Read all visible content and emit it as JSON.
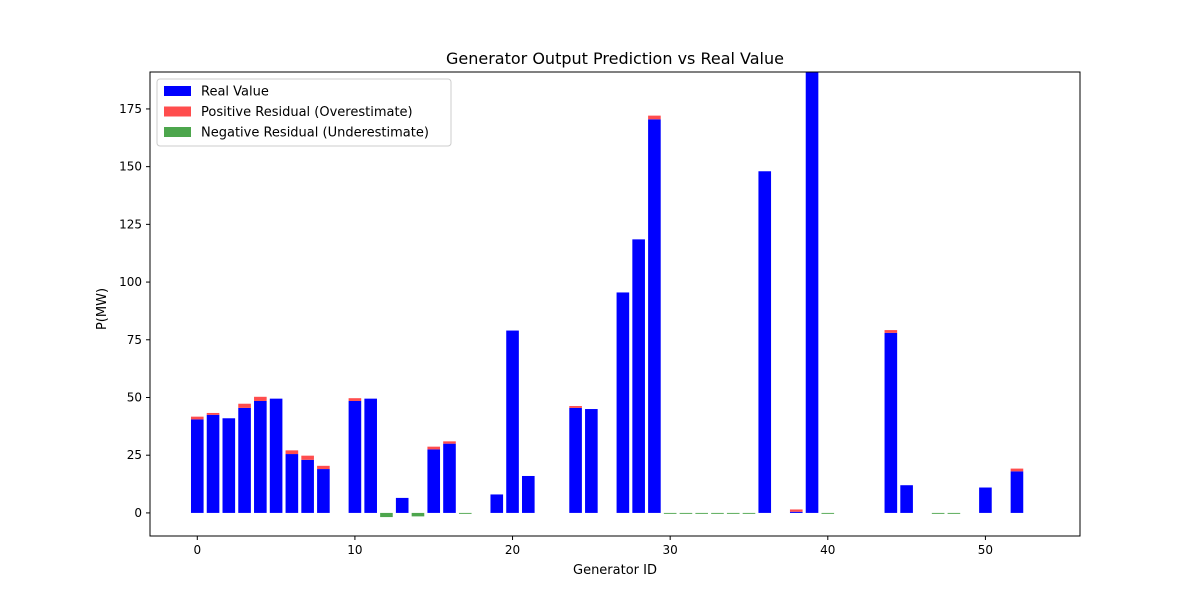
{
  "chart_data": {
    "type": "bar",
    "title": "Generator Output Prediction vs Real Value",
    "xlabel": "Generator ID",
    "ylabel": "P(MW)",
    "xlim": [
      -3,
      56
    ],
    "ylim": [
      -10,
      191
    ],
    "xticks": [
      0,
      10,
      20,
      30,
      40,
      50
    ],
    "yticks": [
      0,
      25,
      50,
      75,
      100,
      125,
      150,
      175
    ],
    "grid": false,
    "legend_position": "top-left",
    "series": [
      {
        "name": "Real Value",
        "color": "#0000ff"
      },
      {
        "name": "Positive Residual (Overestimate)",
        "color": "#ff4d4d"
      },
      {
        "name": "Negative Residual (Underestimate)",
        "color": "#4da64d"
      }
    ],
    "x": [
      0,
      1,
      2,
      3,
      4,
      5,
      6,
      7,
      8,
      10,
      11,
      12,
      13,
      14,
      15,
      16,
      17,
      19,
      20,
      21,
      24,
      25,
      27,
      28,
      29,
      30,
      31,
      32,
      33,
      34,
      35,
      36,
      38,
      39,
      40,
      44,
      45,
      47,
      48,
      50,
      52
    ],
    "real_values": [
      40.5,
      42.5,
      41,
      45.5,
      48.5,
      49.5,
      25.5,
      23,
      19,
      48.5,
      49.5,
      0,
      6.5,
      0,
      27.5,
      30,
      0,
      8,
      79,
      16,
      45.5,
      45,
      95.5,
      118.5,
      170.5,
      0,
      0,
      0,
      0,
      0,
      0,
      148,
      0.5,
      191,
      0,
      78,
      12,
      0,
      0,
      11,
      18
    ],
    "residuals": [
      1.2,
      0.8,
      0,
      1.8,
      1.8,
      0,
      1.6,
      1.8,
      1.4,
      1.2,
      0,
      -1.8,
      0,
      -1.5,
      1.2,
      1,
      -0.4,
      0,
      0,
      0,
      0.8,
      0,
      0,
      0,
      1.6,
      -0.4,
      -0.4,
      -0.4,
      -0.4,
      -0.4,
      -0.4,
      0,
      1,
      0,
      -0.4,
      1.2,
      0,
      -0.4,
      -0.4,
      0,
      1.2
    ]
  }
}
